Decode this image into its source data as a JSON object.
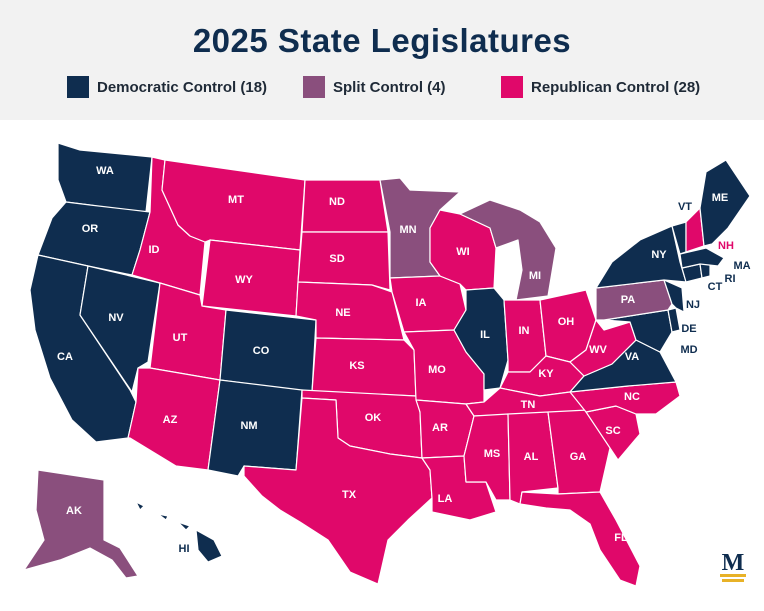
{
  "title": "2025 State Legislatures",
  "legend": {
    "democratic": {
      "label": "Democratic Control (18)",
      "color": "#0f2d4f"
    },
    "split": {
      "label": "Split Control (4)",
      "color": "#8a4f7d"
    },
    "republican": {
      "label": "Republican Control (28)",
      "color": "#e0086a"
    }
  },
  "logo_letter": "M",
  "states": {
    "WA": "WA",
    "OR": "OR",
    "CA": "CA",
    "NV": "NV",
    "ID": "ID",
    "MT": "MT",
    "WY": "WY",
    "UT": "UT",
    "AZ": "AZ",
    "CO": "CO",
    "NM": "NM",
    "ND": "ND",
    "SD": "SD",
    "NE": "NE",
    "KS": "KS",
    "OK": "OK",
    "TX": "TX",
    "MN": "MN",
    "IA": "IA",
    "MO": "MO",
    "AR": "AR",
    "LA": "LA",
    "WI": "WI",
    "IL": "IL",
    "MI": "MI",
    "IN": "IN",
    "OH": "OH",
    "KY": "KY",
    "TN": "TN",
    "MS": "MS",
    "AL": "AL",
    "GA": "GA",
    "FL": "FL",
    "SC": "SC",
    "NC": "NC",
    "VA": "VA",
    "WV": "WV",
    "PA": "PA",
    "NY": "NY",
    "VT": "VT",
    "NH": "NH",
    "ME": "ME",
    "MA": "MA",
    "RI": "RI",
    "CT": "CT",
    "NJ": "NJ",
    "DE": "DE",
    "MD": "MD",
    "AK": "AK",
    "HI": "HI"
  }
}
